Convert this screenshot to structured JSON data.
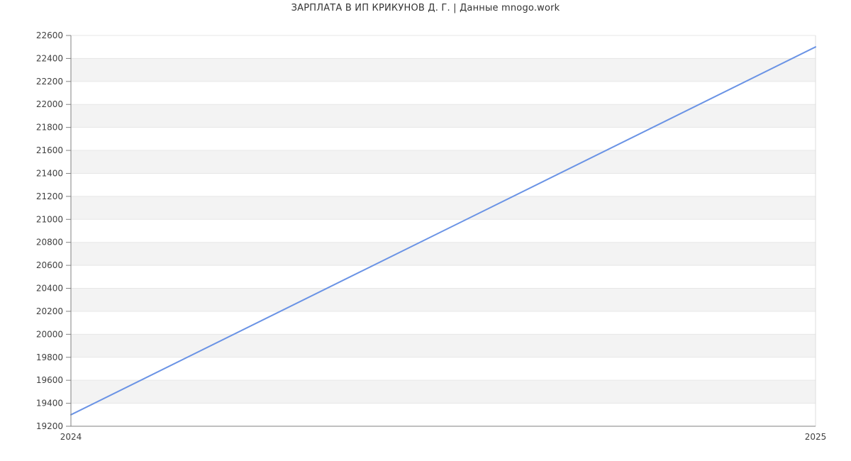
{
  "chart_data": {
    "type": "line",
    "title": "ЗАРПЛАТА В ИП КРИКУНОВ Д. Г. | Данные mnogo.work",
    "x": [
      2024,
      2025
    ],
    "x_tick_labels": [
      "2024",
      "2025"
    ],
    "series": [
      {
        "values": [
          19300,
          22500
        ],
        "color": "#6a93e5",
        "width": 2
      }
    ],
    "ylim": [
      19200,
      22600
    ],
    "y_tick_step": 200,
    "xlabel": "",
    "ylabel": "",
    "grid": true,
    "alternating_row_bands": true,
    "legend": "none",
    "colors": {
      "band": "#f3f3f3",
      "gridline": "#e7e7e7",
      "axis": "#808080",
      "plot_border": "#dcdcdc",
      "tick_label": "#404040",
      "title": "#333333"
    }
  }
}
